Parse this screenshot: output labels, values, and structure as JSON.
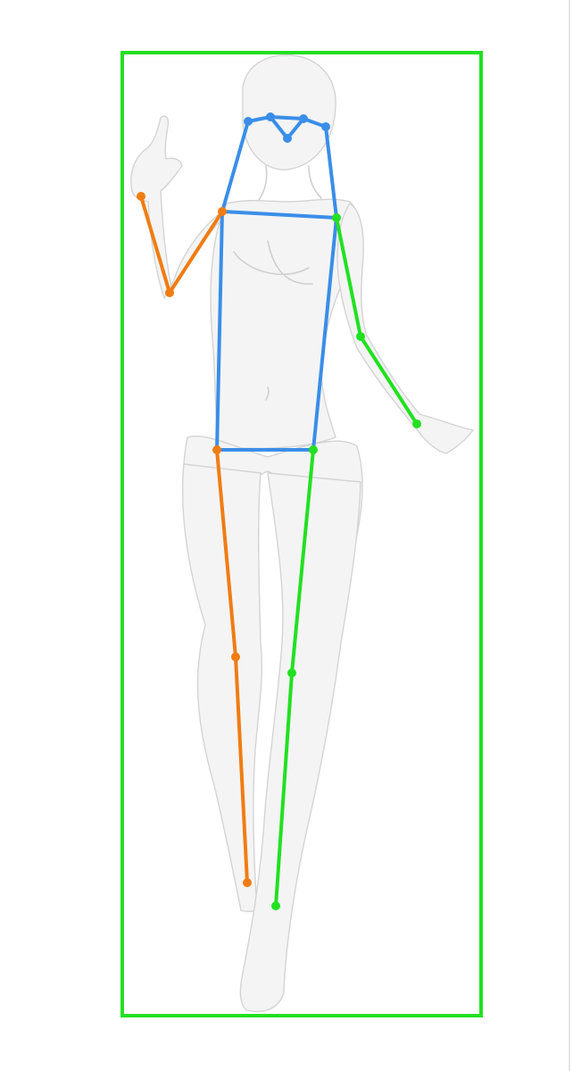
{
  "colors": {
    "bounding_box": "#22e022",
    "center_chain": "#3a8ee8",
    "right_side": "#f07c12",
    "left_side": "#22e022",
    "sketch": "#cfcfcf",
    "background": "#ffffff"
  },
  "annotation": {
    "type": "pose-keypoints",
    "keypoint_count": 17
  }
}
